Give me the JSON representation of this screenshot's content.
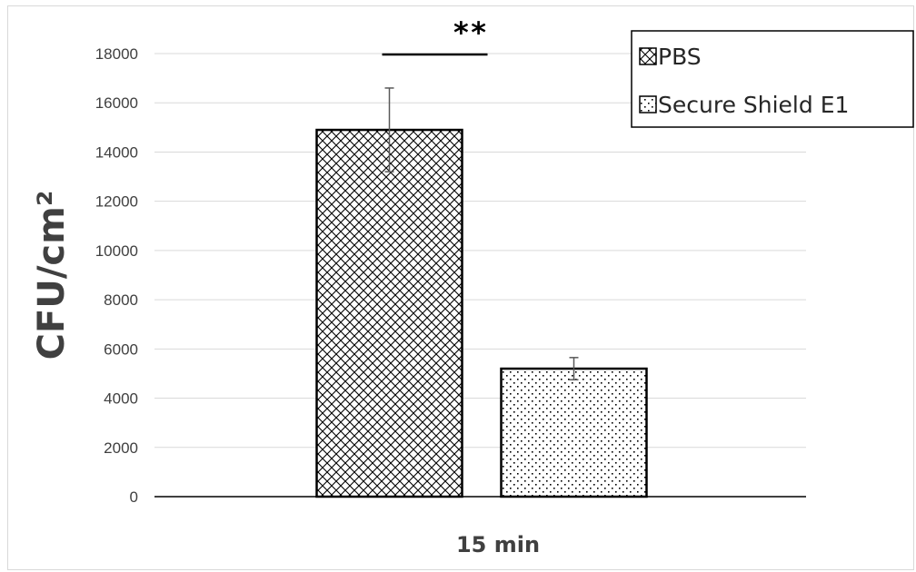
{
  "chart_data": {
    "type": "bar",
    "categories": [
      "15 min"
    ],
    "series": [
      {
        "name": "PBS",
        "values": [
          14900
        ],
        "error": [
          1700
        ],
        "pattern": "crosshatch"
      },
      {
        "name": "Secure Shield E1",
        "values": [
          5200
        ],
        "error": [
          450
        ],
        "pattern": "dots"
      }
    ],
    "xlabel": "15 min",
    "ylabel": "CFU/cm²",
    "ylim": [
      0,
      18000
    ],
    "yticks": [
      0,
      2000,
      4000,
      6000,
      8000,
      10000,
      12000,
      14000,
      16000,
      18000
    ],
    "grid": true,
    "legend_position": "top-right",
    "significance": {
      "label": "**",
      "between": [
        "PBS",
        "Secure Shield E1"
      ]
    },
    "colors": {
      "gridline": "#d9d9d9",
      "axis": "#000000",
      "text": "#404040"
    }
  }
}
